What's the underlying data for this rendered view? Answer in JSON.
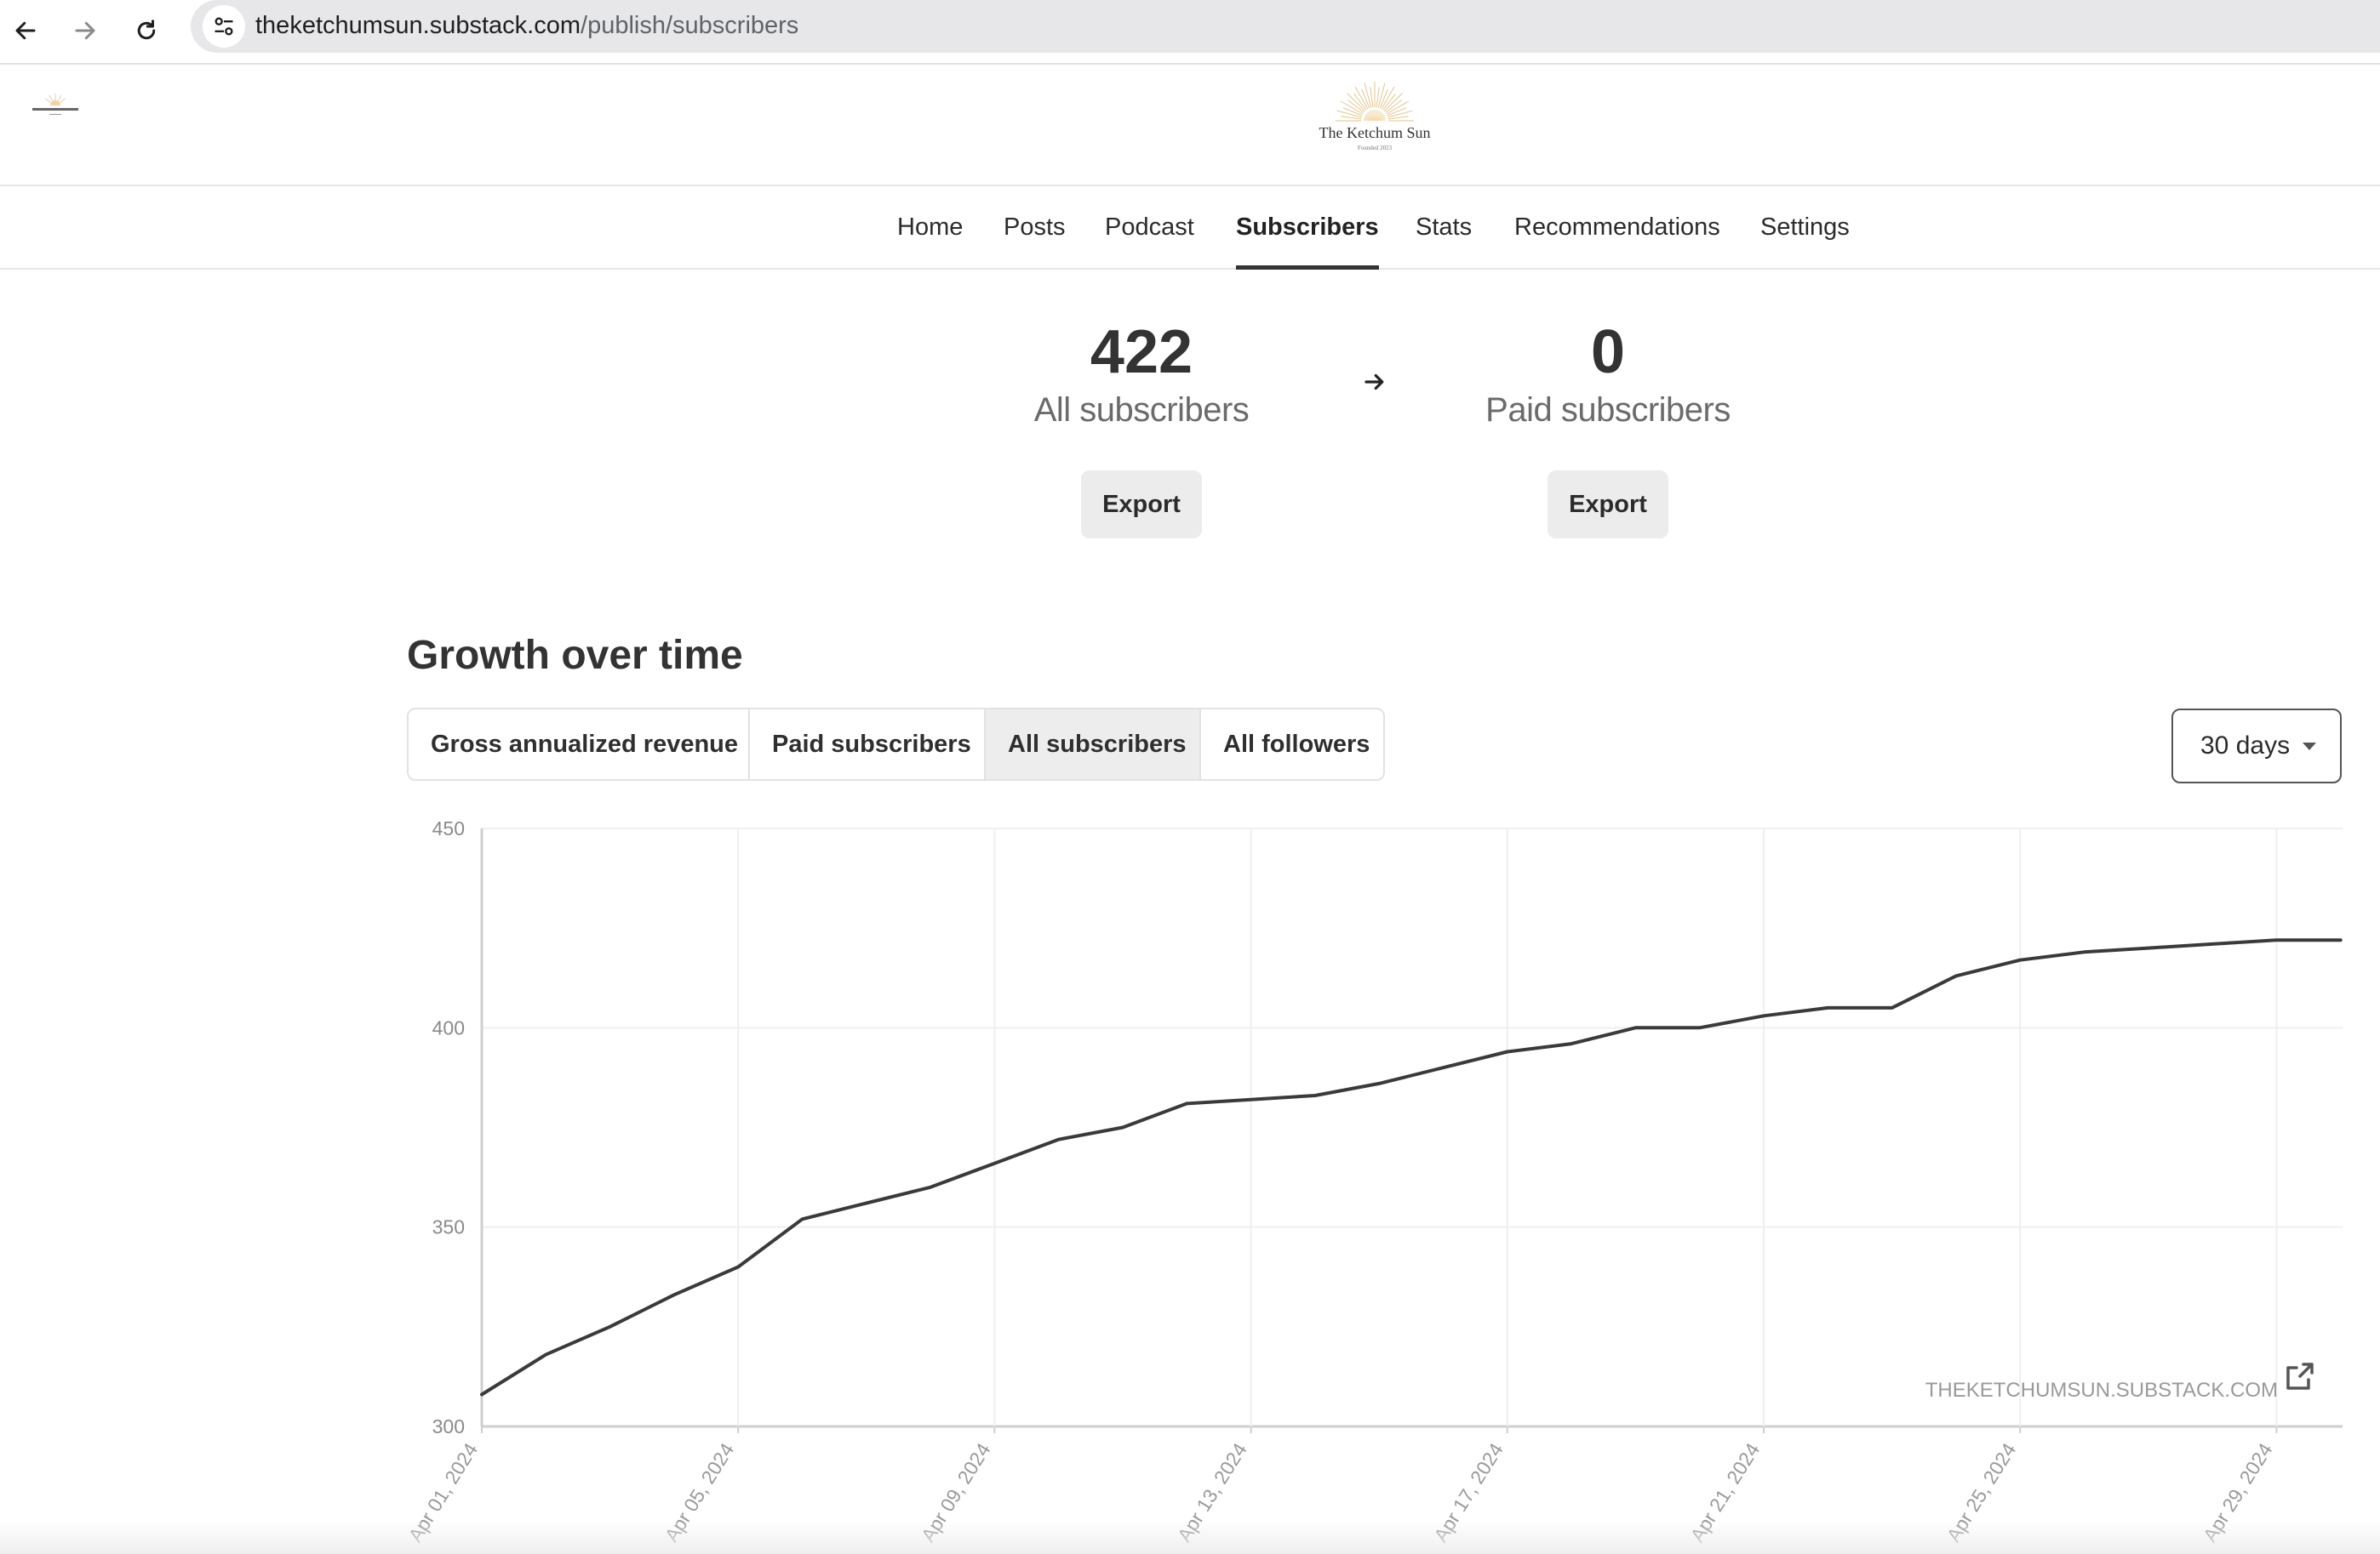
{
  "browser": {
    "url_host": "theketchumsun.substack.com",
    "url_path": "/publish/subscribers"
  },
  "publication": {
    "name": "The Ketchum Sun",
    "tagline": "Founded 2023"
  },
  "nav": {
    "items": [
      "Home",
      "Posts",
      "Podcast",
      "Subscribers",
      "Stats",
      "Recommendations",
      "Settings"
    ],
    "active": "Subscribers"
  },
  "stats": {
    "all": {
      "value": "422",
      "label": "All subscribers",
      "export_label": "Export"
    },
    "paid": {
      "value": "0",
      "label": "Paid subscribers",
      "export_label": "Export"
    }
  },
  "growth": {
    "title": "Growth over time",
    "tabs": [
      "Gross annualized revenue",
      "Paid subscribers",
      "All subscribers",
      "All followers"
    ],
    "selected_tab": "All subscribers",
    "range": "30 days"
  },
  "chart_data": {
    "type": "line",
    "title": "",
    "xlabel": "",
    "ylabel": "",
    "ylim": [
      300,
      450
    ],
    "yticks": [
      300,
      350,
      400,
      450
    ],
    "xtick_labels": [
      "Apr 01, 2024",
      "Apr 05, 2024",
      "Apr 09, 2024",
      "Apr 13, 2024",
      "Apr 17, 2024",
      "Apr 21, 2024",
      "Apr 25, 2024",
      "Apr 29, 2024"
    ],
    "grid": true,
    "watermark": "THEKETCHUMSUN.SUBSTACK.COM",
    "x": [
      "2024-04-01",
      "2024-04-02",
      "2024-04-03",
      "2024-04-04",
      "2024-04-05",
      "2024-04-06",
      "2024-04-07",
      "2024-04-08",
      "2024-04-09",
      "2024-04-10",
      "2024-04-11",
      "2024-04-12",
      "2024-04-13",
      "2024-04-14",
      "2024-04-15",
      "2024-04-16",
      "2024-04-17",
      "2024-04-18",
      "2024-04-19",
      "2024-04-20",
      "2024-04-21",
      "2024-04-22",
      "2024-04-23",
      "2024-04-24",
      "2024-04-25",
      "2024-04-26",
      "2024-04-27",
      "2024-04-28",
      "2024-04-29",
      "2024-04-30"
    ],
    "series": [
      {
        "values": [
          308,
          318,
          325,
          333,
          340,
          352,
          356,
          360,
          366,
          372,
          375,
          381,
          382,
          383,
          386,
          390,
          394,
          396,
          400,
          400,
          403,
          405,
          405,
          413,
          417,
          419,
          420,
          421,
          422,
          422
        ]
      }
    ]
  }
}
